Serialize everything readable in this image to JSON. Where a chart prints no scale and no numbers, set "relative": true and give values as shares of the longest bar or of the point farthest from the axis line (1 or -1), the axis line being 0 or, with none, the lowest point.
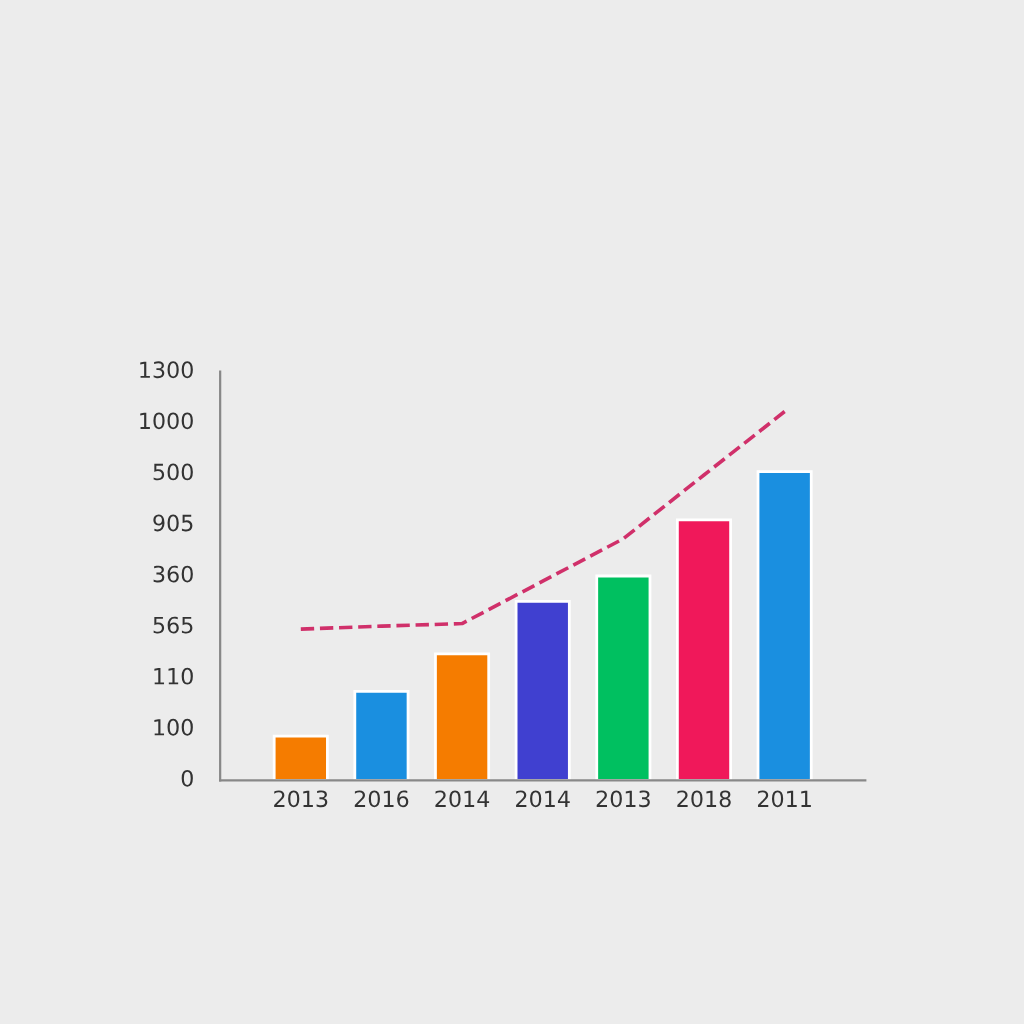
{
  "chart_data": {
    "type": "bar",
    "relative": true,
    "categories": [
      "2013",
      "2016",
      "2014",
      "2014",
      "2013",
      "2018",
      "2011"
    ],
    "series": [
      {
        "colors": [
          "#f57c00",
          "#1a8fe0",
          "#f57c00",
          "#4040d0",
          "#00c060",
          "#f0185a",
          "#1a8fe0"
        ],
        "values": [
          0.12,
          0.241,
          0.343,
          0.485,
          0.554,
          0.706,
          0.837
        ]
      },
      {
        "type": "line",
        "color": "#d0306a",
        "line_style": "dashed",
        "marker": "none",
        "values": [
          0.41,
          0.418,
          0.425,
          0.54,
          0.655,
          0.828,
          1
        ]
      }
    ],
    "annotations": [
      "0",
      "100",
      "110",
      "565",
      "360",
      "905",
      "500",
      "1000",
      "1300"
    ],
    "grid": false,
    "legend": false
  }
}
